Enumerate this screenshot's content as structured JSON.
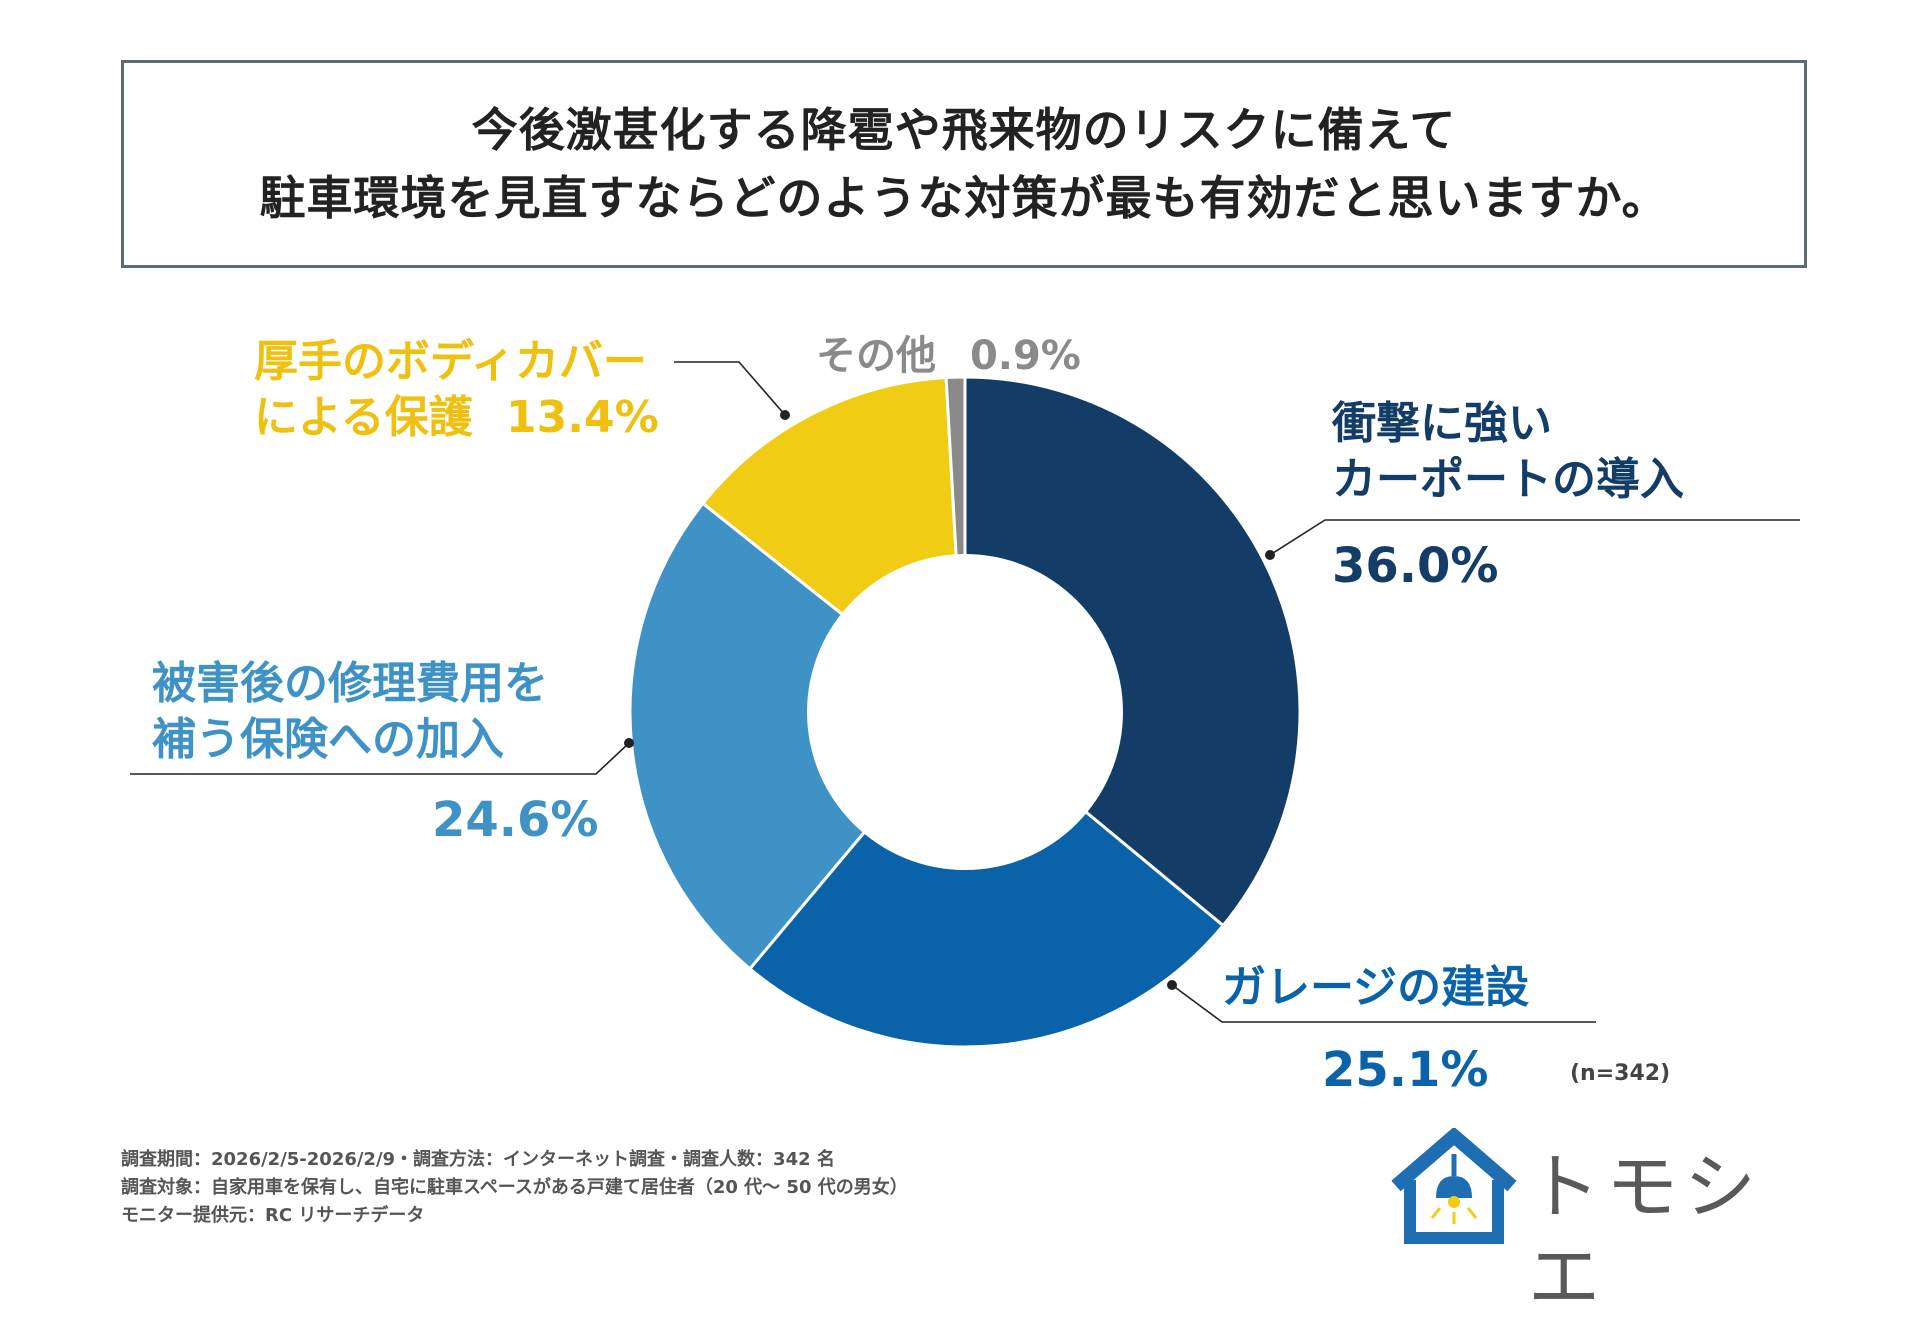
{
  "title": {
    "line1": "今後激甚化する降雹や飛来物のリスクに備えて",
    "line2": "駐車環境を見直すならどのような対策が最も有効だと思いますか。"
  },
  "chart_data": {
    "type": "pie",
    "donut": true,
    "title": "今後激甚化する降雹や飛来物のリスクに備えて駐車環境を見直すならどのような対策が最も有効だと思いますか。",
    "slices": [
      {
        "name": "衝撃に強いカーポートの導入",
        "name_line1": "衝撃に強い",
        "name_line2": "カーポートの導入",
        "value": 36.0,
        "label": "36.0%",
        "color": "#133c66"
      },
      {
        "name": "ガレージの建設",
        "name_line1": "ガレージの建設",
        "value": 25.1,
        "label": "25.1%",
        "color": "#0a63a8"
      },
      {
        "name": "被害後の修理費用を補う保険への加入",
        "name_line1": "被害後の修理費用を",
        "name_line2": "補う保険への加入",
        "value": 24.6,
        "label": "24.6%",
        "color": "#3e92c5"
      },
      {
        "name": "厚手のボディカバーによる保護",
        "name_line1": "厚手のボディカバー",
        "name_line2": "による保護",
        "value": 13.4,
        "label": "13.4%",
        "color": "#f0cc14"
      },
      {
        "name": "その他",
        "name_line1": "その他",
        "value": 0.9,
        "label": "0.9%",
        "color": "#8a8a8a"
      }
    ],
    "sample": "(n=342)"
  },
  "footer": {
    "line1": "調査期間：2026/2/5-2026/2/9・調査方法：インターネット調査・調査人数：342 名",
    "line2": "調査対象：自家用車を保有し、自宅に駐車スペースがある戸建て居住者（20 代～ 50 代の男女）",
    "line3": "モニター提供元：RC リサーチデータ"
  },
  "logo": {
    "text": "トモシエ",
    "color": "#1f6db3"
  }
}
